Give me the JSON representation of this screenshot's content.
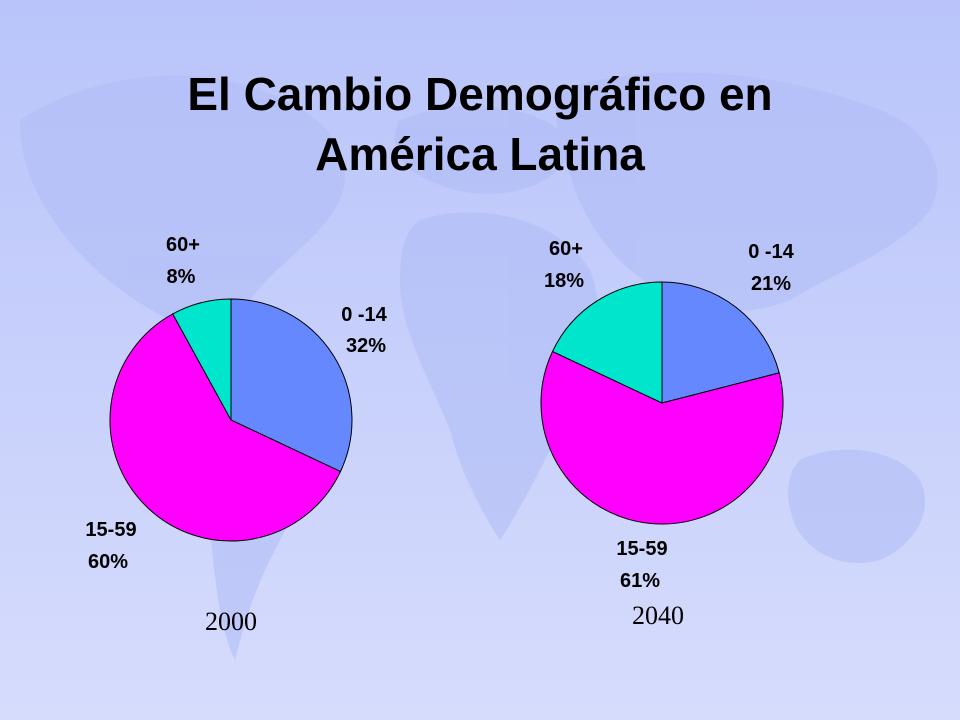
{
  "title": {
    "line1": "El Cambio Demográfico en",
    "line2": "América Latina"
  },
  "colors": {
    "slice_0_14": "#6688ff",
    "slice_15_59": "#ff00ff",
    "slice_60": "#00e6cc",
    "background": "#c4cdfb"
  },
  "chart_data": [
    {
      "type": "pie",
      "caption": "2000",
      "slices": [
        {
          "label": "0 -14",
          "pct_text": "32%",
          "value": 32
        },
        {
          "label": "15-59",
          "pct_text": "60%",
          "value": 60
        },
        {
          "label": "60+",
          "pct_text": "8%",
          "value": 8
        }
      ]
    },
    {
      "type": "pie",
      "caption": "2040",
      "slices": [
        {
          "label": "0 -14",
          "pct_text": "21%",
          "value": 21
        },
        {
          "label": "15-59",
          "pct_text": "61%",
          "value": 61
        },
        {
          "label": "60+",
          "pct_text": "18%",
          "value": 18
        }
      ]
    }
  ]
}
